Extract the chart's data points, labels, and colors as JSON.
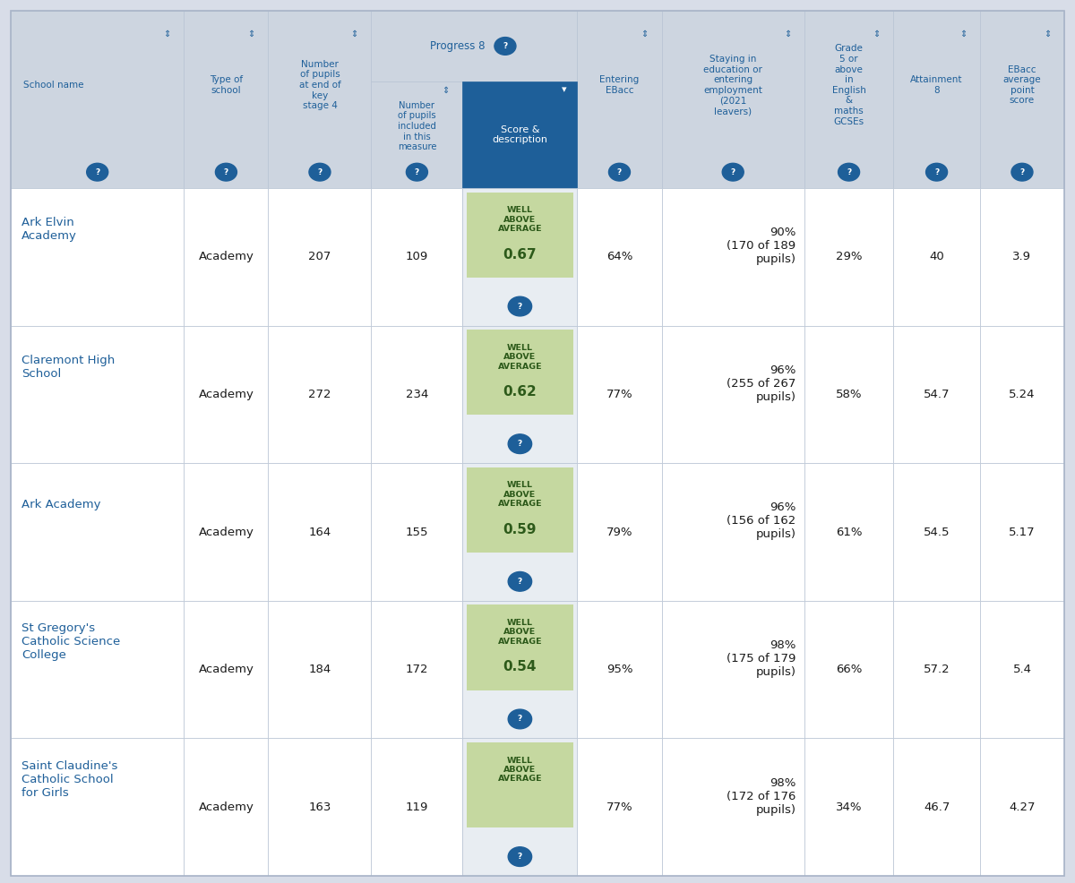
{
  "background_color": "#d8dde8",
  "header_bg": "#cdd5e0",
  "score_header_bg": "#1e5f99",
  "score_cell_bg_data": "#e8edf2",
  "badge_bg": "#c5d8a0",
  "badge_text_color": "#2d5a1a",
  "col_props": [
    0.148,
    0.072,
    0.088,
    0.078,
    0.098,
    0.072,
    0.122,
    0.076,
    0.074,
    0.072
  ],
  "header_text_color": "#1e5f99",
  "cell_text_color": "#1a1a1a",
  "school_name_color": "#1e5f99",
  "question_mark_color": "#1e5f99",
  "row_bg": "#ffffff",
  "border_color": "#c0c8d8",
  "rows": [
    {
      "school_name": "Ark Elvin\nAcademy",
      "type": "Academy",
      "num_pupils": "207",
      "num_included": "109",
      "score_label": "WELL\nABOVE\nAVERAGE",
      "score_value": "0.67",
      "entering_ebacc": "64%",
      "staying": "90%\n(170 of 189\npupils)",
      "grade5": "29%",
      "attainment8": "40",
      "ebacc_score": "3.9"
    },
    {
      "school_name": "Claremont High\nSchool",
      "type": "Academy",
      "num_pupils": "272",
      "num_included": "234",
      "score_label": "WELL\nABOVE\nAVERAGE",
      "score_value": "0.62",
      "entering_ebacc": "77%",
      "staying": "96%\n(255 of 267\npupils)",
      "grade5": "58%",
      "attainment8": "54.7",
      "ebacc_score": "5.24"
    },
    {
      "school_name": "Ark Academy",
      "type": "Academy",
      "num_pupils": "164",
      "num_included": "155",
      "score_label": "WELL\nABOVE\nAVERAGE",
      "score_value": "0.59",
      "entering_ebacc": "79%",
      "staying": "96%\n(156 of 162\npupils)",
      "grade5": "61%",
      "attainment8": "54.5",
      "ebacc_score": "5.17"
    },
    {
      "school_name": "St Gregory's\nCatholic Science\nCollege",
      "type": "Academy",
      "num_pupils": "184",
      "num_included": "172",
      "score_label": "WELL\nABOVE\nAVERAGE",
      "score_value": "0.54",
      "entering_ebacc": "95%",
      "staying": "98%\n(175 of 179\npupils)",
      "grade5": "66%",
      "attainment8": "57.2",
      "ebacc_score": "5.4"
    },
    {
      "school_name": "Saint Claudine's\nCatholic School\nfor Girls",
      "type": "Academy",
      "num_pupils": "163",
      "num_included": "119",
      "score_label": "WELL\nABOVE\nAVERAGE",
      "score_value": "",
      "entering_ebacc": "77%",
      "staying": "98%\n(172 of 176\npupils)",
      "grade5": "34%",
      "attainment8": "46.7",
      "ebacc_score": "4.27"
    }
  ]
}
